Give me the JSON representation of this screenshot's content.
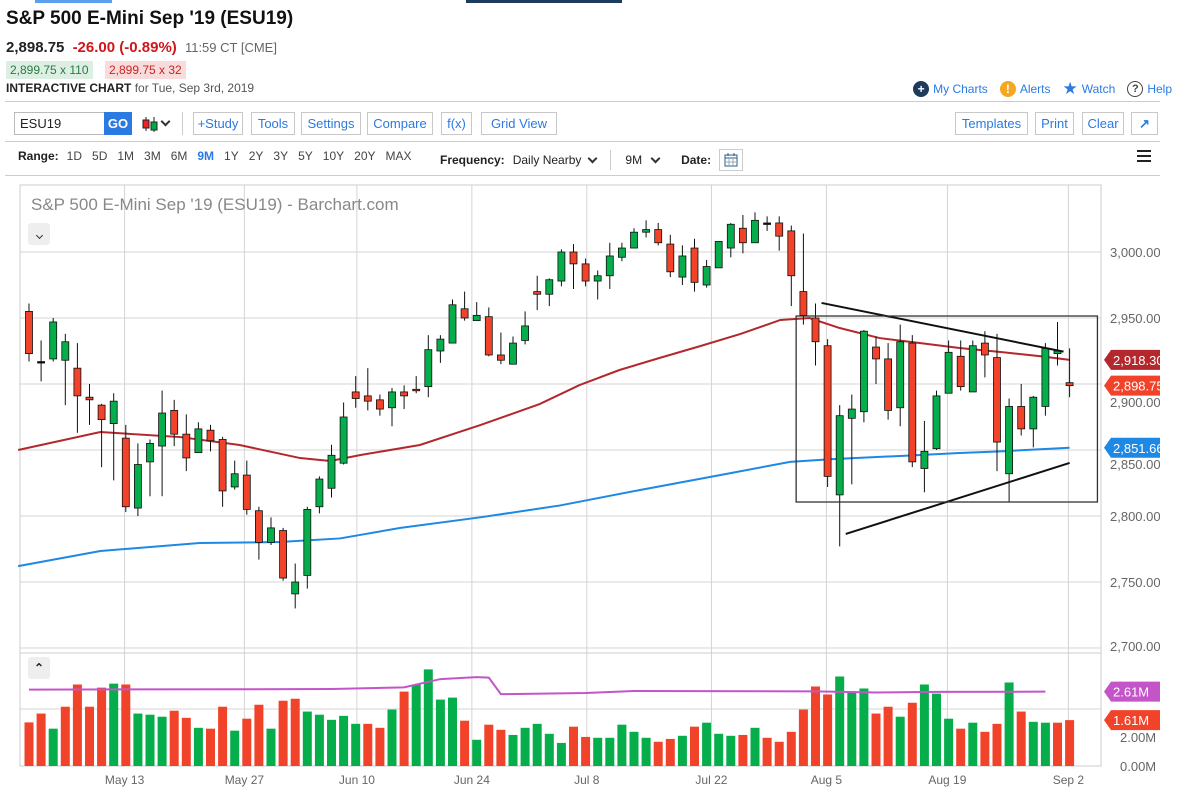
{
  "header": {
    "title": "S&P 500 E-Mini Sep '19 (ESU19)",
    "last": "2,898.75",
    "change": "-26.00 (-0.89%)",
    "time": "11:59 CT [CME]",
    "bid": "2,899.75 x 110",
    "ask": "2,899.75 x 32",
    "chart_label": "INTERACTIVE CHART",
    "chart_date": "for Tue, Sep 3rd, 2019"
  },
  "links": {
    "my_charts": "My Charts",
    "alerts": "Alerts",
    "watch": "Watch",
    "help": "Help"
  },
  "toolbar": {
    "symbol": "ESU19",
    "go": "GO",
    "study": "+Study",
    "tools": "Tools",
    "settings": "Settings",
    "compare": "Compare",
    "fx": "f(x)",
    "grid": "Grid View",
    "templates": "Templates",
    "print": "Print",
    "clear": "Clear"
  },
  "range": {
    "label": "Range:",
    "items": [
      "1D",
      "5D",
      "1M",
      "3M",
      "6M",
      "9M",
      "1Y",
      "2Y",
      "3Y",
      "5Y",
      "10Y",
      "20Y",
      "MAX"
    ],
    "selected": "9M"
  },
  "frequency": {
    "label": "Frequency:",
    "value": "Daily Nearby",
    "period": "9M",
    "date_label": "Date:"
  },
  "colors": {
    "up": "#06ad4b",
    "down": "#f0432a",
    "ma50": "#b3282d",
    "ma200": "#1e88e5",
    "vol_avg": "#c355c9",
    "accent": "#2a7ae2"
  },
  "chart_data": {
    "type": "candlestick",
    "title": "S&P 500 E-Mini Sep '19 (ESU19) - Barchart.com",
    "y_ticks": [
      "3,000.00",
      "2,950.00",
      "2,900.00",
      "2,850.00",
      "2,800.00",
      "2,750.00",
      "2,700.00"
    ],
    "y_tick_values": [
      3000,
      2950,
      2900,
      2850,
      2800,
      2750,
      2700
    ],
    "ylim": [
      2700,
      3050
    ],
    "x_ticks": [
      {
        "label": "May 13",
        "i": 7.9
      },
      {
        "label": "May 27",
        "i": 17.8
      },
      {
        "label": "Jun 10",
        "i": 27.1
      },
      {
        "label": "Jun 24",
        "i": 36.6
      },
      {
        "label": "Jul 8",
        "i": 46.1
      },
      {
        "label": "Jul 22",
        "i": 56.4
      },
      {
        "label": "Aug 5",
        "i": 65.9
      },
      {
        "label": "Aug 19",
        "i": 75.9
      },
      {
        "label": "Sep 2",
        "i": 85.9
      }
    ],
    "ohlc": [
      [
        2955,
        2961,
        2917,
        2923
      ],
      [
        2917,
        2933,
        2902,
        2917
      ],
      [
        2919,
        2950,
        2917,
        2947
      ],
      [
        2918,
        2938,
        2884,
        2932
      ],
      [
        2912,
        2931,
        2863,
        2891
      ],
      [
        2890,
        2900,
        2869,
        2888
      ],
      [
        2884,
        2885,
        2837,
        2873
      ],
      [
        2870,
        2893,
        2827,
        2887
      ],
      [
        2859,
        2869,
        2803,
        2807
      ],
      [
        2806,
        2855,
        2800,
        2839
      ],
      [
        2841,
        2858,
        2815,
        2855
      ],
      [
        2853,
        2895,
        2815,
        2878
      ],
      [
        2880,
        2888,
        2853,
        2862
      ],
      [
        2862,
        2877,
        2834,
        2844
      ],
      [
        2848,
        2871,
        2848,
        2866
      ],
      [
        2865,
        2869,
        2849,
        2857
      ],
      [
        2858,
        2860,
        2807,
        2819
      ],
      [
        2822,
        2842,
        2820,
        2832
      ],
      [
        2831,
        2842,
        2801,
        2805
      ],
      [
        2804,
        2807,
        2767,
        2780
      ],
      [
        2780,
        2799,
        2778,
        2791
      ],
      [
        2789,
        2791,
        2751,
        2753
      ],
      [
        2741,
        2764,
        2730,
        2750
      ],
      [
        2755,
        2807,
        2745,
        2805
      ],
      [
        2807,
        2830,
        2802,
        2828
      ],
      [
        2821,
        2854,
        2814,
        2846
      ],
      [
        2840,
        2886,
        2839,
        2875
      ],
      [
        2894,
        2906,
        2882,
        2889
      ],
      [
        2891,
        2912,
        2880,
        2887
      ],
      [
        2888,
        2892,
        2876,
        2881
      ],
      [
        2882,
        2897,
        2868,
        2894
      ],
      [
        2894,
        2899,
        2881,
        2891
      ],
      [
        2896,
        2906,
        2893,
        2895
      ],
      [
        2898,
        2937,
        2890,
        2926
      ],
      [
        2925,
        2937,
        2916,
        2934
      ],
      [
        2931,
        2964,
        2931,
        2960
      ],
      [
        2957,
        2970,
        2948,
        2950
      ],
      [
        2948,
        2962,
        2948,
        2952
      ],
      [
        2951,
        2958,
        2921,
        2922
      ],
      [
        2922,
        2939,
        2915,
        2918
      ],
      [
        2915,
        2936,
        2915,
        2931
      ],
      [
        2933,
        2955,
        2930,
        2944
      ],
      [
        2970,
        2982,
        2956,
        2968
      ],
      [
        2968,
        2980,
        2959,
        2979
      ],
      [
        2978,
        3002,
        2974,
        3000
      ],
      [
        3000,
        3006,
        2972,
        2991
      ],
      [
        2991,
        2995,
        2974,
        2978
      ],
      [
        2978,
        2986,
        2964,
        2982
      ],
      [
        2982,
        3007,
        2972,
        2997
      ],
      [
        2996,
        3007,
        2993,
        3003
      ],
      [
        3003,
        3018,
        3003,
        3015
      ],
      [
        3015,
        3024,
        3011,
        3017
      ],
      [
        3017,
        3022,
        3005,
        3007
      ],
      [
        3006,
        3013,
        2981,
        2985
      ],
      [
        2981,
        3005,
        2975,
        2997
      ],
      [
        3003,
        3010,
        2970,
        2977
      ],
      [
        2975,
        2994,
        2973,
        2989
      ],
      [
        2988,
        3008,
        2988,
        3008
      ],
      [
        3003,
        3022,
        2996,
        3021
      ],
      [
        3018,
        3028,
        2999,
        3007
      ],
      [
        3007,
        3030,
        3007,
        3024
      ],
      [
        3022,
        3027,
        3016,
        3022
      ],
      [
        3022,
        3027,
        3001,
        3012
      ],
      [
        3016,
        3020,
        2959,
        2982
      ],
      [
        2970,
        3014,
        2945,
        2952
      ],
      [
        2950,
        2961,
        2914,
        2932
      ],
      [
        2929,
        2934,
        2822,
        2830
      ],
      [
        2816,
        2884,
        2777,
        2876
      ],
      [
        2874,
        2892,
        2824,
        2881
      ],
      [
        2879,
        2941,
        2871,
        2940
      ],
      [
        2928,
        2936,
        2900,
        2919
      ],
      [
        2919,
        2931,
        2873,
        2880
      ],
      [
        2882,
        2945,
        2868,
        2932
      ],
      [
        2931,
        2937,
        2837,
        2841
      ],
      [
        2836,
        2872,
        2818,
        2849
      ],
      [
        2851,
        2895,
        2850,
        2891
      ],
      [
        2893,
        2933,
        2893,
        2924
      ],
      [
        2921,
        2933,
        2895,
        2898
      ],
      [
        2894,
        2933,
        2894,
        2929
      ],
      [
        2931,
        2940,
        2905,
        2922
      ],
      [
        2920,
        2938,
        2834,
        2856
      ],
      [
        2832,
        2889,
        2811,
        2883
      ],
      [
        2883,
        2900,
        2861,
        2866
      ],
      [
        2866,
        2891,
        2852,
        2890
      ],
      [
        2883,
        2931,
        2876,
        2927
      ],
      [
        2923,
        2947,
        2914,
        2925
      ],
      [
        2901,
        2927,
        2890,
        2898.75
      ]
    ],
    "ma50": {
      "label": "2,918.30",
      "points": [
        [
          -0.9,
          2850
        ],
        [
          5.9,
          2863.6
        ],
        [
          12.5,
          2859.8
        ],
        [
          17.4,
          2853.8
        ],
        [
          22.4,
          2843.9
        ],
        [
          24.9,
          2841.7
        ],
        [
          27.4,
          2846.2
        ],
        [
          32.3,
          2853.8
        ],
        [
          37.3,
          2868.9
        ],
        [
          42.2,
          2884.8
        ],
        [
          45.5,
          2899.2
        ],
        [
          48.8,
          2910.6
        ],
        [
          52.1,
          2919.7
        ],
        [
          55.5,
          2928.8
        ],
        [
          58.8,
          2937.9
        ],
        [
          62.1,
          2948.5
        ],
        [
          64.5,
          2950
        ],
        [
          67,
          2942.4
        ],
        [
          70.3,
          2934.8
        ],
        [
          73.6,
          2931.1
        ],
        [
          76.9,
          2927.3
        ],
        [
          80.3,
          2924.2
        ],
        [
          83.6,
          2921
        ],
        [
          86,
          2918.3
        ]
      ]
    },
    "ma200": {
      "label": "2,851.66",
      "points": [
        [
          -0.9,
          2762
        ],
        [
          5.9,
          2773.5
        ],
        [
          14.1,
          2779.5
        ],
        [
          20.7,
          2780.3
        ],
        [
          25.7,
          2783
        ],
        [
          30.7,
          2791
        ],
        [
          37.3,
          2799
        ],
        [
          43.9,
          2808
        ],
        [
          50.5,
          2819.7
        ],
        [
          57.1,
          2831
        ],
        [
          62.9,
          2841
        ],
        [
          66.2,
          2843
        ],
        [
          72,
          2845.5
        ],
        [
          76.9,
          2847.7
        ],
        [
          80.3,
          2849
        ],
        [
          86,
          2851.66
        ]
      ]
    },
    "volume": {
      "unit": "M",
      "ticks": [
        "2.00M",
        "0.00M"
      ],
      "tick_values": [
        2,
        0
      ],
      "last_label": "1.61M",
      "avg_label": "2.61M",
      "values": [
        1.53,
        1.84,
        1.31,
        2.08,
        2.86,
        2.08,
        2.75,
        2.89,
        2.86,
        1.84,
        1.8,
        1.73,
        1.94,
        1.69,
        1.34,
        1.31,
        2.08,
        1.24,
        1.66,
        2.15,
        1.31,
        2.29,
        2.36,
        1.91,
        1.8,
        1.62,
        1.76,
        1.48,
        1.48,
        1.34,
        1.98,
        2.61,
        2.86,
        3.39,
        2.33,
        2.4,
        1.59,
        0.92,
        1.45,
        1.27,
        1.09,
        1.34,
        1.48,
        1.13,
        0.81,
        1.38,
        1.02,
        0.99,
        0.99,
        1.45,
        1.2,
        0.99,
        0.85,
        0.95,
        1.06,
        1.38,
        1.52,
        1.13,
        1.06,
        1.09,
        1.34,
        0.99,
        0.85,
        1.2,
        1.98,
        2.79,
        2.51,
        3.14,
        2.61,
        2.72,
        1.84,
        2.08,
        1.73,
        2.22,
        2.86,
        2.54,
        1.66,
        1.31,
        1.52,
        1.2,
        1.48,
        2.93,
        1.91,
        1.55,
        1.52,
        1.52,
        1.61
      ],
      "avg_points": [
        [
          0,
          2.68
        ],
        [
          25,
          2.7
        ],
        [
          31,
          2.76
        ],
        [
          34,
          3.05
        ],
        [
          37,
          3.12
        ],
        [
          38,
          3.1
        ],
        [
          39,
          2.52
        ],
        [
          46,
          2.56
        ],
        [
          50,
          2.63
        ],
        [
          65,
          2.62
        ],
        [
          70,
          2.58
        ],
        [
          75,
          2.6
        ],
        [
          84,
          2.61
        ]
      ]
    },
    "drawings": {
      "upper_trend": [
        [
          65.5,
          2961.4
        ],
        [
          85.5,
          2924.5
        ]
      ],
      "lower_trend": [
        [
          67.5,
          2786.4
        ],
        [
          86,
          2840.2
        ]
      ],
      "box": [
        [
          63.4,
          2951.5
        ],
        [
          88.3,
          2810.6
        ]
      ]
    }
  }
}
